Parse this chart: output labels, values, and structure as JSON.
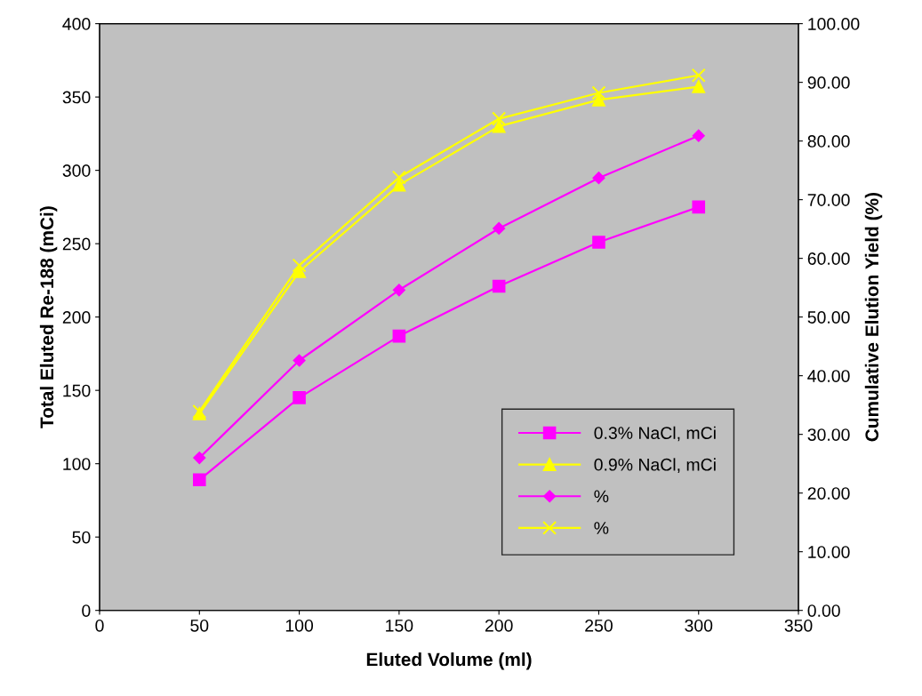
{
  "chart_data": {
    "type": "line",
    "xlabel": "Eluted Volume (ml)",
    "ylabel": "Total Eluted Re-188 (mCi)",
    "y2label": "Cumulative Elution Yield (%)",
    "x": [
      50,
      100,
      150,
      200,
      250,
      300
    ],
    "xlim": [
      0,
      350
    ],
    "xticks": [
      0,
      50,
      100,
      150,
      200,
      250,
      300,
      350
    ],
    "ylim": [
      0,
      400
    ],
    "yticks": [
      0,
      50,
      100,
      150,
      200,
      250,
      300,
      350,
      400
    ],
    "y2lim": [
      0,
      100
    ],
    "y2ticks": [
      {
        "value": 0,
        "label": "0.00"
      },
      {
        "value": 10,
        "label": "10.00"
      },
      {
        "value": 20,
        "label": "20.00"
      },
      {
        "value": 30,
        "label": "30.00"
      },
      {
        "value": 40,
        "label": "40.00"
      },
      {
        "value": 50,
        "label": "50.00"
      },
      {
        "value": 60,
        "label": "60.00"
      },
      {
        "value": 70,
        "label": "70.00"
      },
      {
        "value": 80,
        "label": "80.00"
      },
      {
        "value": 90,
        "label": "90.00"
      },
      {
        "value": 100,
        "label": "100.00"
      }
    ],
    "grid": false,
    "legend": "bottom right",
    "series": [
      {
        "name": "0.3% NaCl, mCi",
        "color": "#ff00ff",
        "marker": "square",
        "values": [
          89,
          145,
          187,
          221,
          251,
          275
        ]
      },
      {
        "name": "0.9% NaCl, mCi",
        "color": "#ffff00",
        "marker": "triangle",
        "values": [
          134,
          231,
          290,
          330,
          348,
          357
        ]
      },
      {
        "name": "%",
        "color": "#ff00ff",
        "marker": "diamond",
        "axis": "y2",
        "values": [
          26.0,
          42.6,
          54.6,
          65.1,
          73.7,
          80.9
        ]
      },
      {
        "name": "%",
        "color": "#ffff00",
        "marker": "cross",
        "axis": "y2",
        "values": [
          33.9,
          58.8,
          73.8,
          83.8,
          88.2,
          91.2
        ]
      }
    ]
  }
}
